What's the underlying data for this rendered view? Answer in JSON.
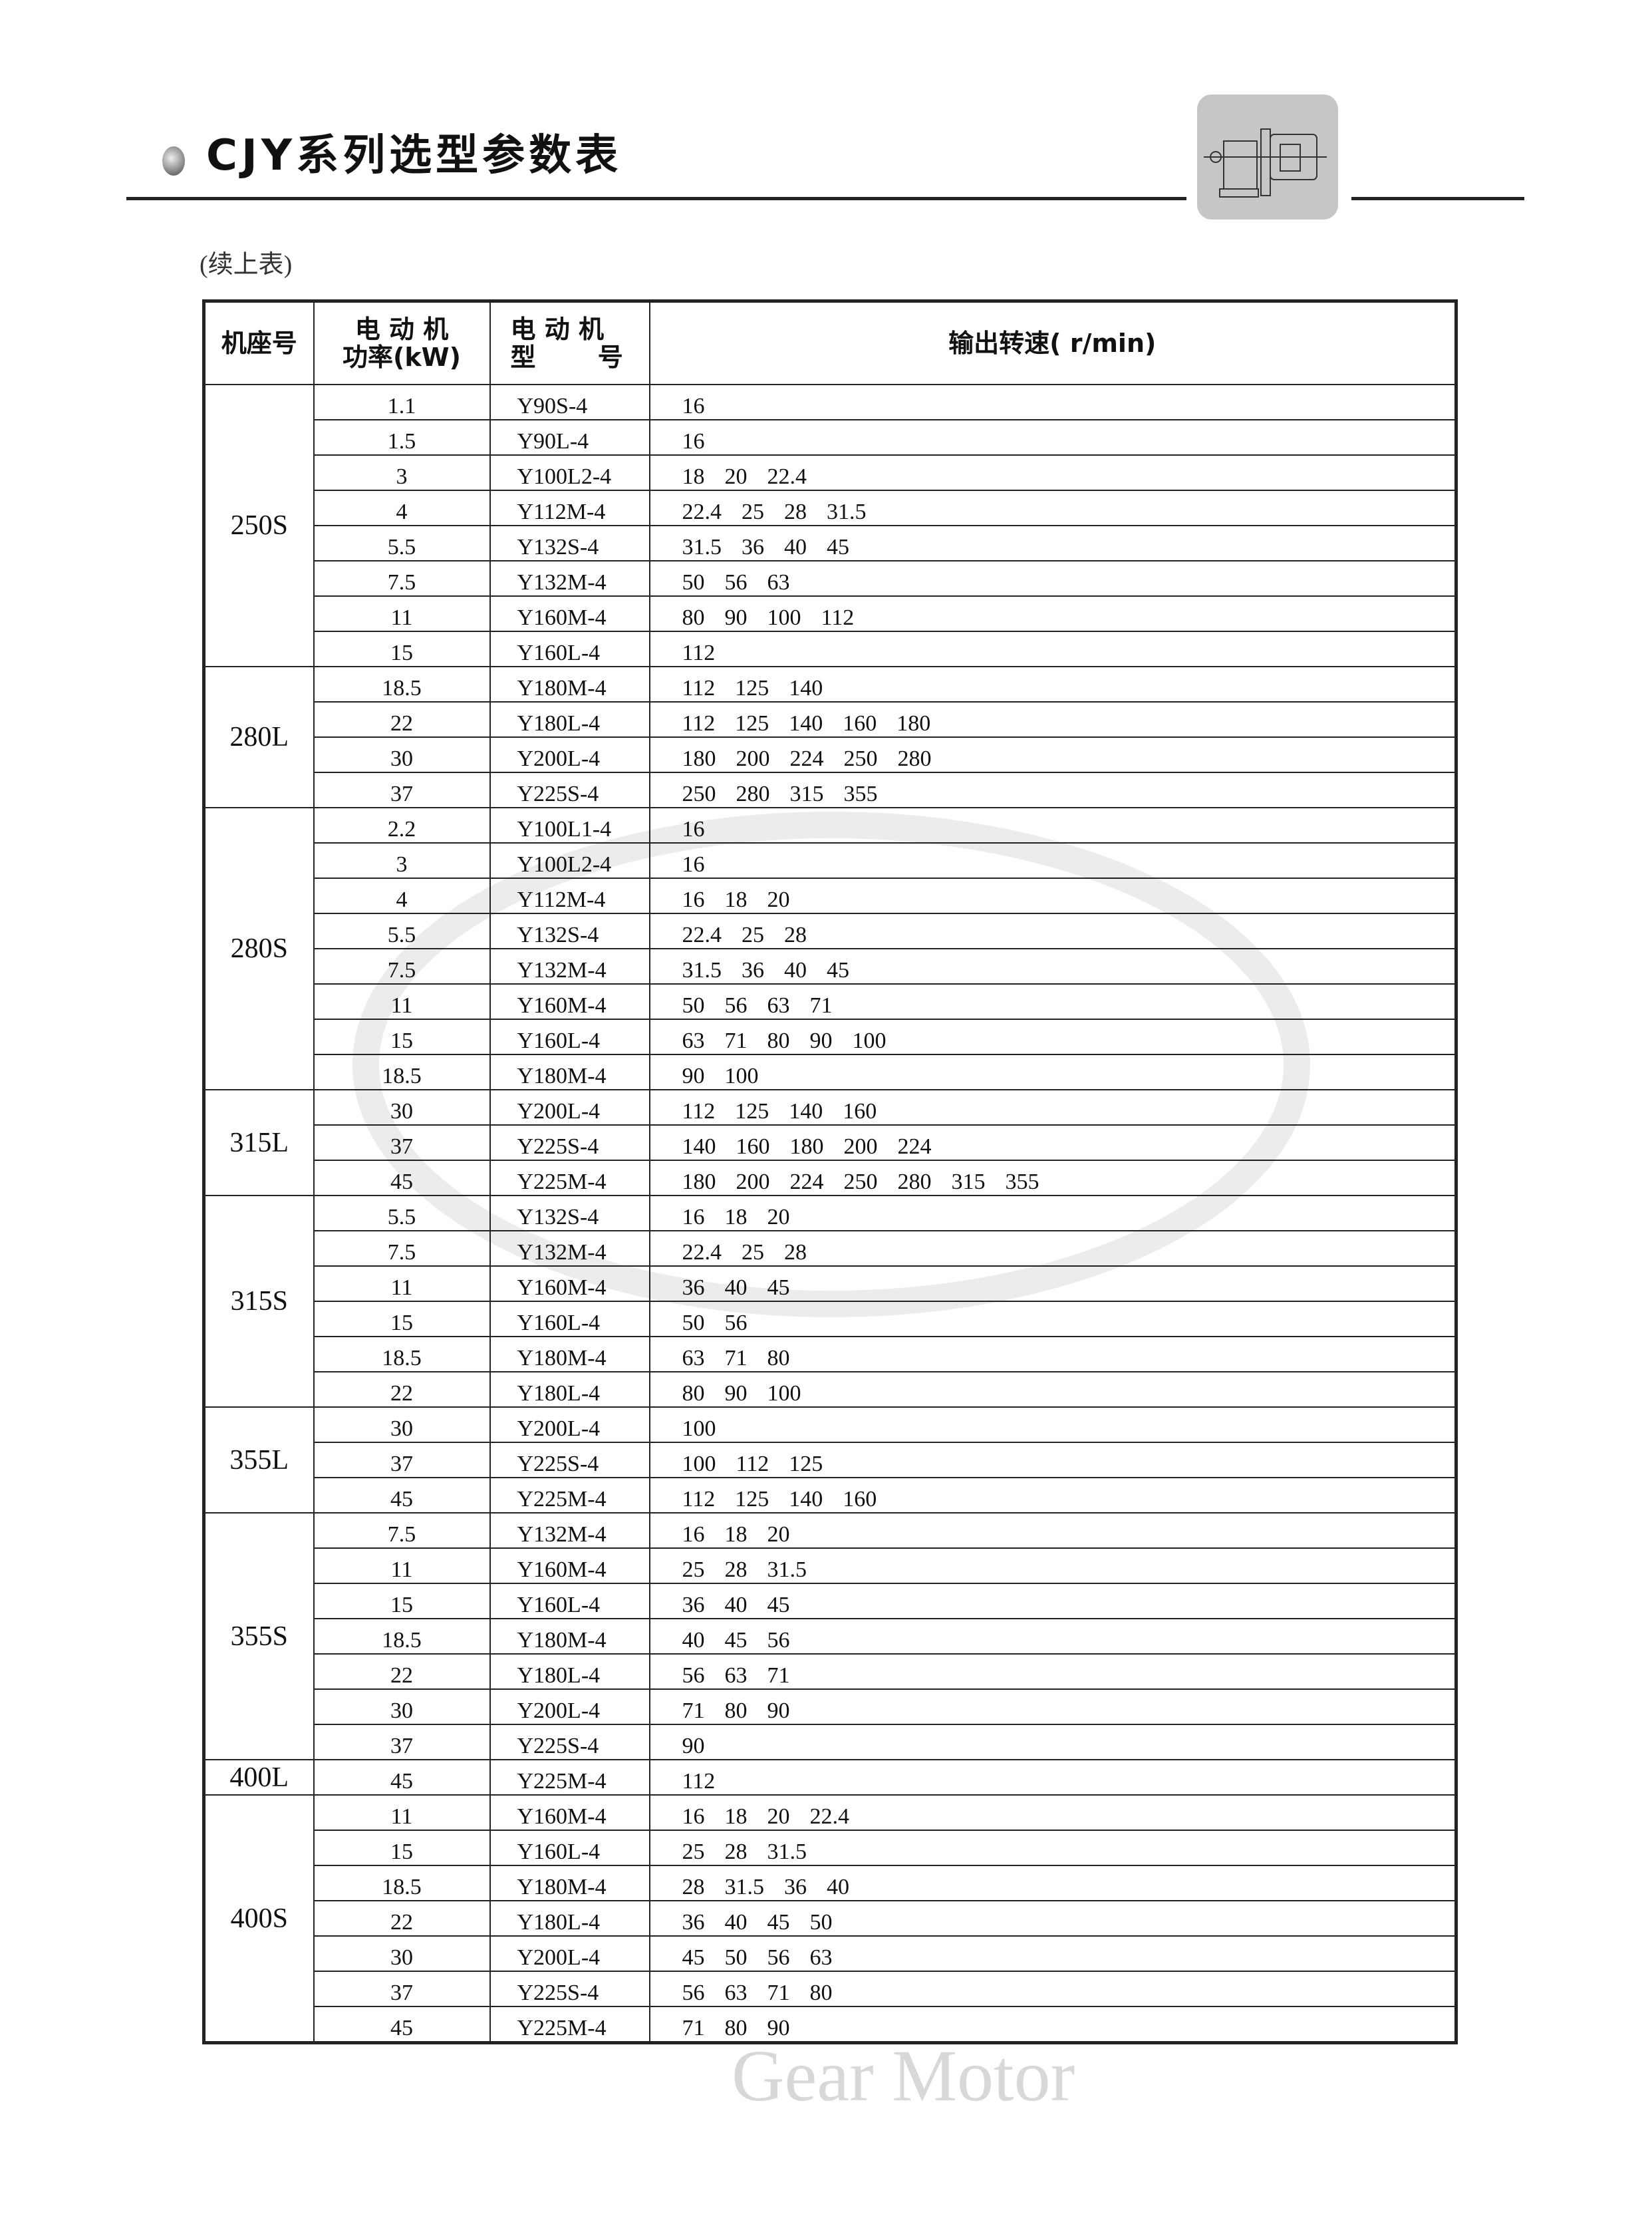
{
  "header": {
    "title": "CJY系列选型参数表",
    "continued": "(续上表)",
    "icon": "gear-motor-icon"
  },
  "table": {
    "columns": [
      "机座号",
      "电 动 机 功率(kW)",
      "电 动 机 型 号",
      "输出转速( r/min)"
    ],
    "col_headers": {
      "seat": "机座号",
      "power_l1": "电 动 机",
      "power_l2": "功率(kW)",
      "model_l1": "电 动 机",
      "model_l2": "型 号",
      "speed": "输出转速( r/min)"
    },
    "groups": [
      {
        "seat": "250S",
        "rows": [
          {
            "kw": "1.1",
            "model": "Y90S-4",
            "speeds": [
              "16"
            ]
          },
          {
            "kw": "1.5",
            "model": "Y90L-4",
            "speeds": [
              "16"
            ]
          },
          {
            "kw": "3",
            "model": "Y100L2-4",
            "speeds": [
              "18",
              "20",
              "22.4"
            ]
          },
          {
            "kw": "4",
            "model": "Y112M-4",
            "speeds": [
              "22.4",
              "25",
              "28",
              "31.5"
            ]
          },
          {
            "kw": "5.5",
            "model": "Y132S-4",
            "speeds": [
              "31.5",
              "36",
              "40",
              "45"
            ]
          },
          {
            "kw": "7.5",
            "model": "Y132M-4",
            "speeds": [
              "50",
              "56",
              "63"
            ]
          },
          {
            "kw": "11",
            "model": "Y160M-4",
            "speeds": [
              "80",
              "90",
              "100",
              "112"
            ]
          },
          {
            "kw": "15",
            "model": "Y160L-4",
            "speeds": [
              "112"
            ]
          }
        ]
      },
      {
        "seat": "280L",
        "rows": [
          {
            "kw": "18.5",
            "model": "Y180M-4",
            "speeds": [
              "112",
              "125",
              "140"
            ]
          },
          {
            "kw": "22",
            "model": "Y180L-4",
            "speeds": [
              "112",
              "125",
              "140",
              "160",
              "180"
            ]
          },
          {
            "kw": "30",
            "model": "Y200L-4",
            "speeds": [
              "180",
              "200",
              "224",
              "250",
              "280"
            ]
          },
          {
            "kw": "37",
            "model": "Y225S-4",
            "speeds": [
              "250",
              "280",
              "315",
              "355"
            ]
          }
        ]
      },
      {
        "seat": "280S",
        "rows": [
          {
            "kw": "2.2",
            "model": "Y100L1-4",
            "speeds": [
              "16"
            ]
          },
          {
            "kw": "3",
            "model": "Y100L2-4",
            "speeds": [
              "16"
            ]
          },
          {
            "kw": "4",
            "model": "Y112M-4",
            "speeds": [
              "16",
              "18",
              "20"
            ]
          },
          {
            "kw": "5.5",
            "model": "Y132S-4",
            "speeds": [
              "22.4",
              "25",
              "28"
            ]
          },
          {
            "kw": "7.5",
            "model": "Y132M-4",
            "speeds": [
              "31.5",
              "36",
              "40",
              "45"
            ]
          },
          {
            "kw": "11",
            "model": "Y160M-4",
            "speeds": [
              "50",
              "56",
              "63",
              "71"
            ]
          },
          {
            "kw": "15",
            "model": "Y160L-4",
            "speeds": [
              "63",
              "71",
              "80",
              "90",
              "100"
            ]
          },
          {
            "kw": "18.5",
            "model": "Y180M-4",
            "speeds": [
              "90",
              "100"
            ]
          }
        ]
      },
      {
        "seat": "315L",
        "rows": [
          {
            "kw": "30",
            "model": "Y200L-4",
            "speeds": [
              "112",
              "125",
              "140",
              "160"
            ]
          },
          {
            "kw": "37",
            "model": "Y225S-4",
            "speeds": [
              "140",
              "160",
              "180",
              "200",
              "224"
            ]
          },
          {
            "kw": "45",
            "model": "Y225M-4",
            "speeds": [
              "180",
              "200",
              "224",
              "250",
              "280",
              "315",
              "355"
            ]
          }
        ]
      },
      {
        "seat": "315S",
        "rows": [
          {
            "kw": "5.5",
            "model": "Y132S-4",
            "speeds": [
              "16",
              "18",
              "20"
            ]
          },
          {
            "kw": "7.5",
            "model": "Y132M-4",
            "speeds": [
              "22.4",
              "25",
              "28"
            ]
          },
          {
            "kw": "11",
            "model": "Y160M-4",
            "speeds": [
              "36",
              "40",
              "45"
            ]
          },
          {
            "kw": "15",
            "model": "Y160L-4",
            "speeds": [
              "50",
              "56"
            ]
          },
          {
            "kw": "18.5",
            "model": "Y180M-4",
            "speeds": [
              "63",
              "71",
              "80"
            ]
          },
          {
            "kw": "22",
            "model": "Y180L-4",
            "speeds": [
              "80",
              "90",
              "100"
            ]
          }
        ]
      },
      {
        "seat": "355L",
        "rows": [
          {
            "kw": "30",
            "model": "Y200L-4",
            "speeds": [
              "100"
            ]
          },
          {
            "kw": "37",
            "model": "Y225S-4",
            "speeds": [
              "100",
              "112",
              "125"
            ]
          },
          {
            "kw": "45",
            "model": "Y225M-4",
            "speeds": [
              "112",
              "125",
              "140",
              "160"
            ]
          }
        ]
      },
      {
        "seat": "355S",
        "rows": [
          {
            "kw": "7.5",
            "model": "Y132M-4",
            "speeds": [
              "16",
              "18",
              "20"
            ]
          },
          {
            "kw": "11",
            "model": "Y160M-4",
            "speeds": [
              "25",
              "28",
              "31.5"
            ]
          },
          {
            "kw": "15",
            "model": "Y160L-4",
            "speeds": [
              "36",
              "40",
              "45"
            ]
          },
          {
            "kw": "18.5",
            "model": "Y180M-4",
            "speeds": [
              "40",
              "45",
              "56"
            ]
          },
          {
            "kw": "22",
            "model": "Y180L-4",
            "speeds": [
              "56",
              "63",
              "71"
            ]
          },
          {
            "kw": "30",
            "model": "Y200L-4",
            "speeds": [
              "71",
              "80",
              "90"
            ]
          },
          {
            "kw": "37",
            "model": "Y225S-4",
            "speeds": [
              "90"
            ]
          }
        ]
      },
      {
        "seat": "400L",
        "rows": [
          {
            "kw": "45",
            "model": "Y225M-4",
            "speeds": [
              "112"
            ]
          }
        ]
      },
      {
        "seat": "400S",
        "rows": [
          {
            "kw": "11",
            "model": "Y160M-4",
            "speeds": [
              "16",
              "18",
              "20",
              "22.4"
            ]
          },
          {
            "kw": "15",
            "model": "Y160L-4",
            "speeds": [
              "25",
              "28",
              "31.5"
            ]
          },
          {
            "kw": "18.5",
            "model": "Y180M-4",
            "speeds": [
              "28",
              "31.5",
              "36",
              "40"
            ]
          },
          {
            "kw": "22",
            "model": "Y180L-4",
            "speeds": [
              "36",
              "40",
              "45",
              "50"
            ]
          },
          {
            "kw": "30",
            "model": "Y200L-4",
            "speeds": [
              "45",
              "50",
              "56",
              "63"
            ]
          },
          {
            "kw": "37",
            "model": "Y225S-4",
            "speeds": [
              "56",
              "63",
              "71",
              "80"
            ]
          },
          {
            "kw": "45",
            "model": "Y225M-4",
            "speeds": [
              "71",
              "80",
              "90"
            ]
          }
        ]
      }
    ]
  },
  "watermark": {
    "text": "Gear Motor",
    "color": "#e4e4e4"
  }
}
